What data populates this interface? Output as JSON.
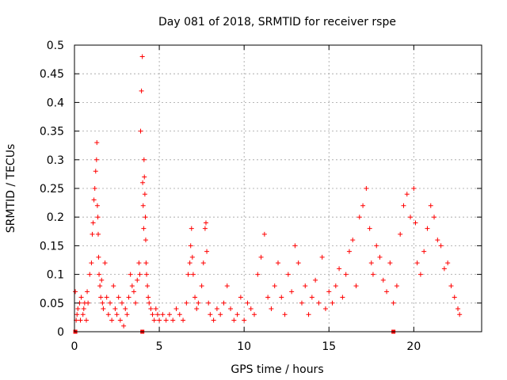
{
  "chart_data": {
    "type": "scatter",
    "title": "Day 081 of 2018, SRMTID for receiver rspe",
    "xlabel": "GPS time / hours",
    "ylabel": "SRMTID / TECUs",
    "xlim": [
      0,
      24
    ],
    "ylim": [
      0,
      0.5
    ],
    "x_ticks": [
      0,
      5,
      10,
      15,
      20
    ],
    "y_ticks": [
      0,
      0.05,
      0.1,
      0.15,
      0.2,
      0.25,
      0.3,
      0.35,
      0.4,
      0.45,
      0.5
    ],
    "x_tick_labels": [
      "0",
      "5",
      "10",
      "15",
      "20"
    ],
    "y_tick_labels": [
      "0",
      "0.05",
      "0.1",
      "0.15",
      "0.2",
      "0.25",
      "0.3",
      "0.35",
      "0.4",
      "0.45",
      "0.5"
    ],
    "grid": true,
    "marker": "plus",
    "color": "#ff0000",
    "series": [
      {
        "name": "SRMTID",
        "x": [
          0.05,
          0.1,
          0.15,
          0.2,
          0.3,
          0.35,
          0.4,
          0.5,
          0.55,
          0.6,
          0.7,
          0.75,
          0.8,
          0.9,
          1.0,
          1.05,
          1.1,
          1.15,
          1.2,
          1.25,
          1.3,
          1.32,
          1.35,
          1.38,
          1.4,
          1.42,
          1.45,
          1.5,
          1.55,
          1.6,
          1.65,
          1.7,
          1.8,
          1.9,
          2.0,
          2.1,
          2.2,
          2.3,
          2.4,
          2.5,
          2.6,
          2.7,
          2.8,
          2.9,
          3.0,
          3.1,
          3.2,
          3.3,
          3.4,
          3.5,
          3.6,
          3.7,
          3.8,
          3.85,
          3.9,
          3.95,
          4.0,
          4.02,
          4.05,
          4.08,
          4.1,
          4.12,
          4.15,
          4.18,
          4.2,
          4.22,
          4.25,
          4.3,
          4.35,
          4.4,
          4.5,
          4.6,
          4.7,
          4.8,
          4.9,
          5.0,
          5.2,
          5.4,
          5.6,
          5.8,
          6.0,
          6.2,
          6.4,
          6.6,
          6.7,
          6.8,
          6.85,
          6.9,
          6.95,
          7.0,
          7.1,
          7.2,
          7.3,
          7.5,
          7.6,
          7.7,
          7.75,
          7.8,
          7.9,
          8.0,
          8.2,
          8.4,
          8.6,
          8.8,
          9.0,
          9.2,
          9.4,
          9.6,
          9.8,
          10.0,
          10.2,
          10.4,
          10.6,
          10.8,
          11.0,
          11.2,
          11.4,
          11.6,
          11.8,
          12.0,
          12.2,
          12.4,
          12.6,
          12.8,
          13.0,
          13.2,
          13.4,
          13.6,
          13.8,
          14.0,
          14.2,
          14.4,
          14.6,
          14.8,
          15.0,
          15.2,
          15.4,
          15.6,
          15.8,
          16.0,
          16.2,
          16.4,
          16.6,
          16.8,
          17.0,
          17.2,
          17.4,
          17.5,
          17.6,
          17.8,
          18.0,
          18.2,
          18.4,
          18.6,
          18.8,
          19.0,
          19.2,
          19.4,
          19.6,
          19.8,
          20.0,
          20.1,
          20.2,
          20.4,
          20.6,
          20.8,
          21.0,
          21.2,
          21.4,
          21.6,
          21.8,
          22.0,
          22.2,
          22.4,
          22.6,
          22.7
        ],
        "y": [
          0.07,
          0.02,
          0.03,
          0.04,
          0.05,
          0.02,
          0.06,
          0.03,
          0.04,
          0.05,
          0.02,
          0.07,
          0.05,
          0.1,
          0.12,
          0.17,
          0.19,
          0.23,
          0.25,
          0.28,
          0.3,
          0.33,
          0.22,
          0.2,
          0.17,
          0.13,
          0.1,
          0.08,
          0.06,
          0.09,
          0.05,
          0.04,
          0.12,
          0.06,
          0.03,
          0.05,
          0.02,
          0.08,
          0.04,
          0.03,
          0.06,
          0.02,
          0.05,
          0.01,
          0.04,
          0.03,
          0.06,
          0.1,
          0.08,
          0.07,
          0.05,
          0.09,
          0.12,
          0.1,
          0.35,
          0.42,
          0.48,
          0.26,
          0.22,
          0.18,
          0.3,
          0.27,
          0.24,
          0.2,
          0.16,
          0.12,
          0.1,
          0.08,
          0.06,
          0.05,
          0.04,
          0.03,
          0.02,
          0.04,
          0.03,
          0.02,
          0.03,
          0.02,
          0.03,
          0.02,
          0.04,
          0.03,
          0.02,
          0.05,
          0.1,
          0.12,
          0.15,
          0.18,
          0.13,
          0.1,
          0.06,
          0.04,
          0.05,
          0.08,
          0.12,
          0.18,
          0.19,
          0.14,
          0.05,
          0.03,
          0.02,
          0.04,
          0.03,
          0.05,
          0.08,
          0.04,
          0.02,
          0.03,
          0.06,
          0.02,
          0.05,
          0.04,
          0.03,
          0.1,
          0.13,
          0.17,
          0.06,
          0.04,
          0.08,
          0.12,
          0.06,
          0.03,
          0.1,
          0.07,
          0.15,
          0.12,
          0.05,
          0.08,
          0.03,
          0.06,
          0.09,
          0.05,
          0.13,
          0.04,
          0.07,
          0.05,
          0.08,
          0.11,
          0.06,
          0.1,
          0.14,
          0.16,
          0.08,
          0.2,
          0.22,
          0.25,
          0.18,
          0.12,
          0.1,
          0.15,
          0.13,
          0.09,
          0.07,
          0.12,
          0.05,
          0.08,
          0.17,
          0.22,
          0.24,
          0.2,
          0.25,
          0.19,
          0.12,
          0.1,
          0.14,
          0.18,
          0.22,
          0.2,
          0.16,
          0.15,
          0.11,
          0.12,
          0.08,
          0.06,
          0.04,
          0.03
        ]
      }
    ],
    "baseline_markers_x": [
      0.05,
      4.0,
      18.8
    ]
  }
}
